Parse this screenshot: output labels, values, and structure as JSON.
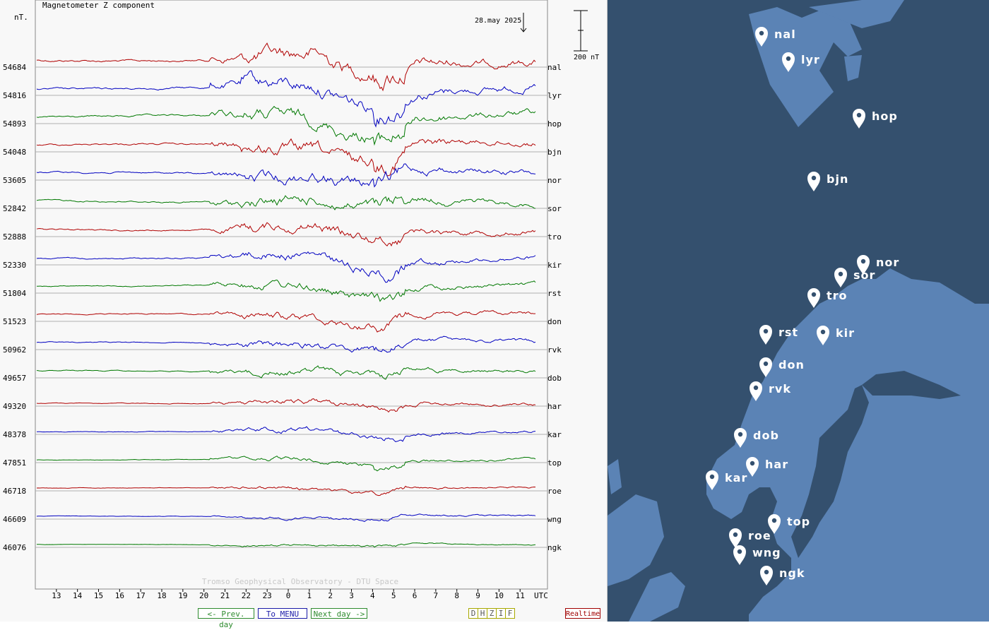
{
  "chart_data": {
    "type": "line",
    "title": "Magnetometer Z component",
    "date": "28.may 2025",
    "ylabel": "nT.",
    "scale_label": "200 nT",
    "xlabel": "UTC",
    "x_ticks": [
      "13",
      "14",
      "15",
      "16",
      "17",
      "18",
      "19",
      "20",
      "21",
      "22",
      "23",
      "0",
      "1",
      "2",
      "3",
      "4",
      "5",
      "6",
      "7",
      "8",
      "9",
      "10",
      "11"
    ],
    "x_range_hours": [
      12.0,
      11.9
    ],
    "watermark": "Tromso Geophysical Observatory - DTU Space",
    "grid": true,
    "series": [
      {
        "name": "nal",
        "baseline": "54684",
        "color": "#b00000"
      },
      {
        "name": "lyr",
        "baseline": "54816",
        "color": "#0000c0"
      },
      {
        "name": "hop",
        "baseline": "54893",
        "color": "#007800"
      },
      {
        "name": "bjn",
        "baseline": "54048",
        "color": "#b00000"
      },
      {
        "name": "nor",
        "baseline": "53605",
        "color": "#0000c0"
      },
      {
        "name": "sor",
        "baseline": "52842",
        "color": "#007800"
      },
      {
        "name": "tro",
        "baseline": "52888",
        "color": "#b00000"
      },
      {
        "name": "kir",
        "baseline": "52330",
        "color": "#0000c0"
      },
      {
        "name": "rst",
        "baseline": "51804",
        "color": "#007800"
      },
      {
        "name": "don",
        "baseline": "51523",
        "color": "#b00000"
      },
      {
        "name": "rvk",
        "baseline": "50962",
        "color": "#0000c0"
      },
      {
        "name": "dob",
        "baseline": "49657",
        "color": "#007800"
      },
      {
        "name": "har",
        "baseline": "49320",
        "color": "#b00000"
      },
      {
        "name": "kar",
        "baseline": "48378",
        "color": "#0000c0"
      },
      {
        "name": "top",
        "baseline": "47851",
        "color": "#007800"
      },
      {
        "name": "roe",
        "baseline": "46718",
        "color": "#b00000"
      },
      {
        "name": "wng",
        "baseline": "46609",
        "color": "#0000c0"
      },
      {
        "name": "ngk",
        "baseline": "46076",
        "color": "#007800"
      }
    ]
  },
  "nav": {
    "prev": "<- Prev. day",
    "menu": "To MENU",
    "next": "Next day ->",
    "components": [
      "D",
      "H",
      "Z",
      "I",
      "F"
    ],
    "realtime": "Realtime"
  },
  "map": {
    "water_color": "#34506e",
    "land_color": "#5b83b5",
    "stations": [
      "nal",
      "lyr",
      "hop",
      "bjn",
      "nor",
      "sor",
      "tro",
      "rst",
      "kir",
      "don",
      "rvk",
      "dob",
      "har",
      "kar",
      "top",
      "roe",
      "wng",
      "ngk"
    ]
  }
}
